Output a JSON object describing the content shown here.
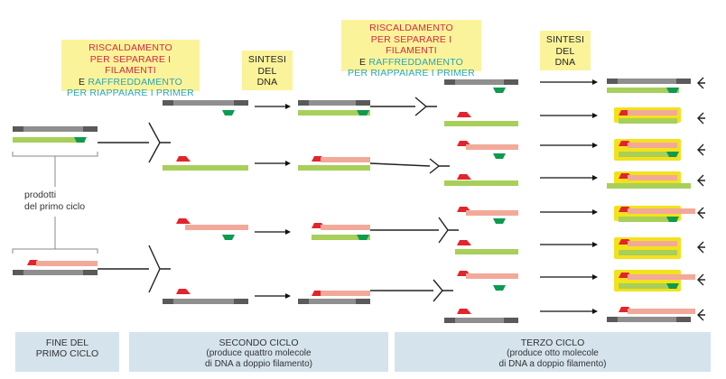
{
  "steps": {
    "heat1": {
      "line1": "RISCALDAMENTO",
      "line2": "PER SEPARARE I FILAMENTI",
      "line3_a": "E ",
      "line3_b": "RAFFREDDAMENTO",
      "line4": "PER RIAPPAIARE I PRIMER"
    },
    "synth1": {
      "line1": "SINTESI",
      "line2": "DEL",
      "line3": "DNA"
    },
    "heat2": {
      "line1": "RISCALDAMENTO",
      "line2": "PER SEPARARE I FILAMENTI",
      "line3_a": "E ",
      "line3_b": "RAFFREDDAMENTO",
      "line4": "PER RIAPPAIARE I PRIMER"
    },
    "synth2": {
      "line1": "SINTESI",
      "line2": "DEL",
      "line3": "DNA"
    }
  },
  "first_cycle_note": {
    "line1": "prodotti",
    "line2": "del primo ciclo"
  },
  "footer": {
    "end_first": {
      "line1": "FINE DEL",
      "line2": "PRIMO CICLO"
    },
    "second": {
      "line1": "SECONDO CICLO",
      "line2": "(produce quattro molecole",
      "line3": "di DNA a doppio filamento)"
    },
    "third": {
      "line1": "TERZO CICLO",
      "line2": "(produce otto molecole",
      "line3": "di DNA a doppio filamento)"
    }
  },
  "colors": {
    "template_strand": "#8f8f8f",
    "strand_end": "#5a5a5a",
    "green_strand": "#a8cf5a",
    "salmon_strand": "#f2a99a",
    "red_primer": "#e3242b",
    "green_primer": "#0e9a50",
    "highlight": "#f3e21a",
    "label_bg": "#fbf39a",
    "footer_bg": "#d5e3ec"
  }
}
